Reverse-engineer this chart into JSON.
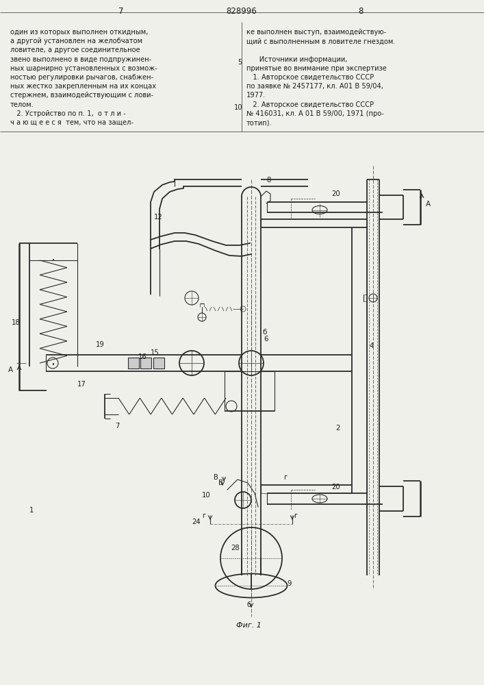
{
  "page_number_left": "7",
  "page_number_right": "8",
  "patent_number": "828996",
  "text_left": [
    "один из которых выполнен откидным,",
    "а другой установлен на желобчатом",
    "ловителе, а другое соединительное",
    "звено выполнено в виде подпружинен-",
    "ных шарнирно установленных с возмож-",
    "ностью регулировки рычагов, снабжен-",
    "ных жестко закрепленным на их концах",
    "стержнем, взаимодействующим с лови-",
    "телом.",
    "   2. Устройство по п. 1,  о т л и -",
    "ч а ю щ е е с я  тем, что на защел-"
  ],
  "text_right": [
    "ке выполнен выступ, взаимодействую-",
    "щий с выполненным в ловителе гнездом.",
    "",
    "      Источники информации,",
    "принятые во внимание при экспертизе",
    "   1. Авторское свидетельство СССР",
    "по заявке № 2457177, кл. А01 В 59/04,",
    "1977.",
    "   2. Авторское свидетельство СССР",
    "№ 416031, кл. А 01 В 59/00, 1971 (про-",
    "тотип)."
  ],
  "fig_label": "Фиг. 1",
  "bg_color": "#f0f0eb",
  "line_color": "#2a2a2a",
  "text_color": "#1a1a1a"
}
